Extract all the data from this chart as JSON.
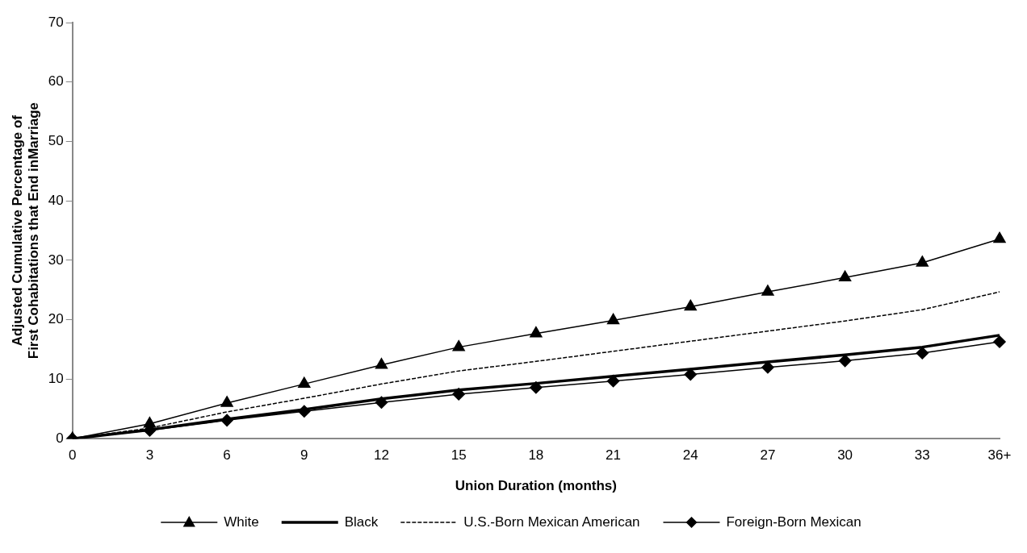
{
  "chart_data": {
    "type": "line",
    "xlabel": "Union Duration (months)",
    "ylabel": "Adjusted Cumulative Percentage of First Cohabitations that End inMarriage",
    "categories": [
      "0",
      "3",
      "6",
      "9",
      "12",
      "15",
      "18",
      "21",
      "24",
      "27",
      "30",
      "33",
      "36+"
    ],
    "ylim": [
      0,
      70
    ],
    "yticks": [
      0,
      10,
      20,
      30,
      40,
      50,
      60,
      70
    ],
    "grid": false,
    "legend": "bottom",
    "series": [
      {
        "name": "White",
        "color": "#000000",
        "marker": "triangle",
        "line_style": "solid",
        "values": [
          0,
          2.5,
          6,
          9.2,
          12.4,
          15.4,
          17.7,
          19.9,
          22.2,
          24.7,
          27.1,
          29.6,
          33.6
        ]
      },
      {
        "name": "Black",
        "color": "#000000",
        "marker": "none",
        "line_style": "solid",
        "values": [
          0,
          1.5,
          3.3,
          4.9,
          6.7,
          8.2,
          9.3,
          10.5,
          11.7,
          12.9,
          14.1,
          15.4,
          17.4
        ]
      },
      {
        "name": "U.S.-Born Mexican American",
        "color": "#000000",
        "marker": "none",
        "line_style": "dashed",
        "values": [
          0,
          1.8,
          4.5,
          6.8,
          9.2,
          11.4,
          13.0,
          14.7,
          16.4,
          18.1,
          19.8,
          21.7,
          24.7
        ]
      },
      {
        "name": "Foreign-Born Mexican",
        "color": "#000000",
        "marker": "diamond",
        "line_style": "solid",
        "values": [
          0,
          1.4,
          3.1,
          4.6,
          6.1,
          7.5,
          8.6,
          9.7,
          10.8,
          12.0,
          13.1,
          14.4,
          16.3
        ]
      }
    ]
  }
}
